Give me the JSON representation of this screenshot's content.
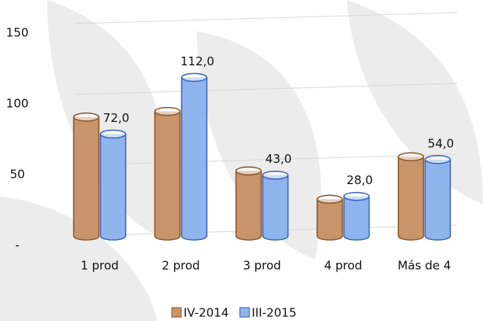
{
  "chart_data": {
    "type": "bar",
    "categories": [
      "1 prod",
      "2 prod",
      "3 prod",
      "4 prod",
      "Más de 4"
    ],
    "series": [
      {
        "name": "IV-2014",
        "color": "#c9946a",
        "values": [
          84,
          88,
          46,
          26,
          56
        ]
      },
      {
        "name": "III-2015",
        "color": "#8fb4ee",
        "values": [
          72,
          112,
          43,
          28,
          54
        ],
        "value_labels": [
          "72,0",
          "112,0",
          "43,0",
          "28,0",
          "54,0"
        ]
      }
    ],
    "ylim": [
      0,
      150
    ],
    "yticks": [
      {
        "value": 0,
        "label": "-"
      },
      50,
      100,
      150
    ],
    "grid": true
  }
}
